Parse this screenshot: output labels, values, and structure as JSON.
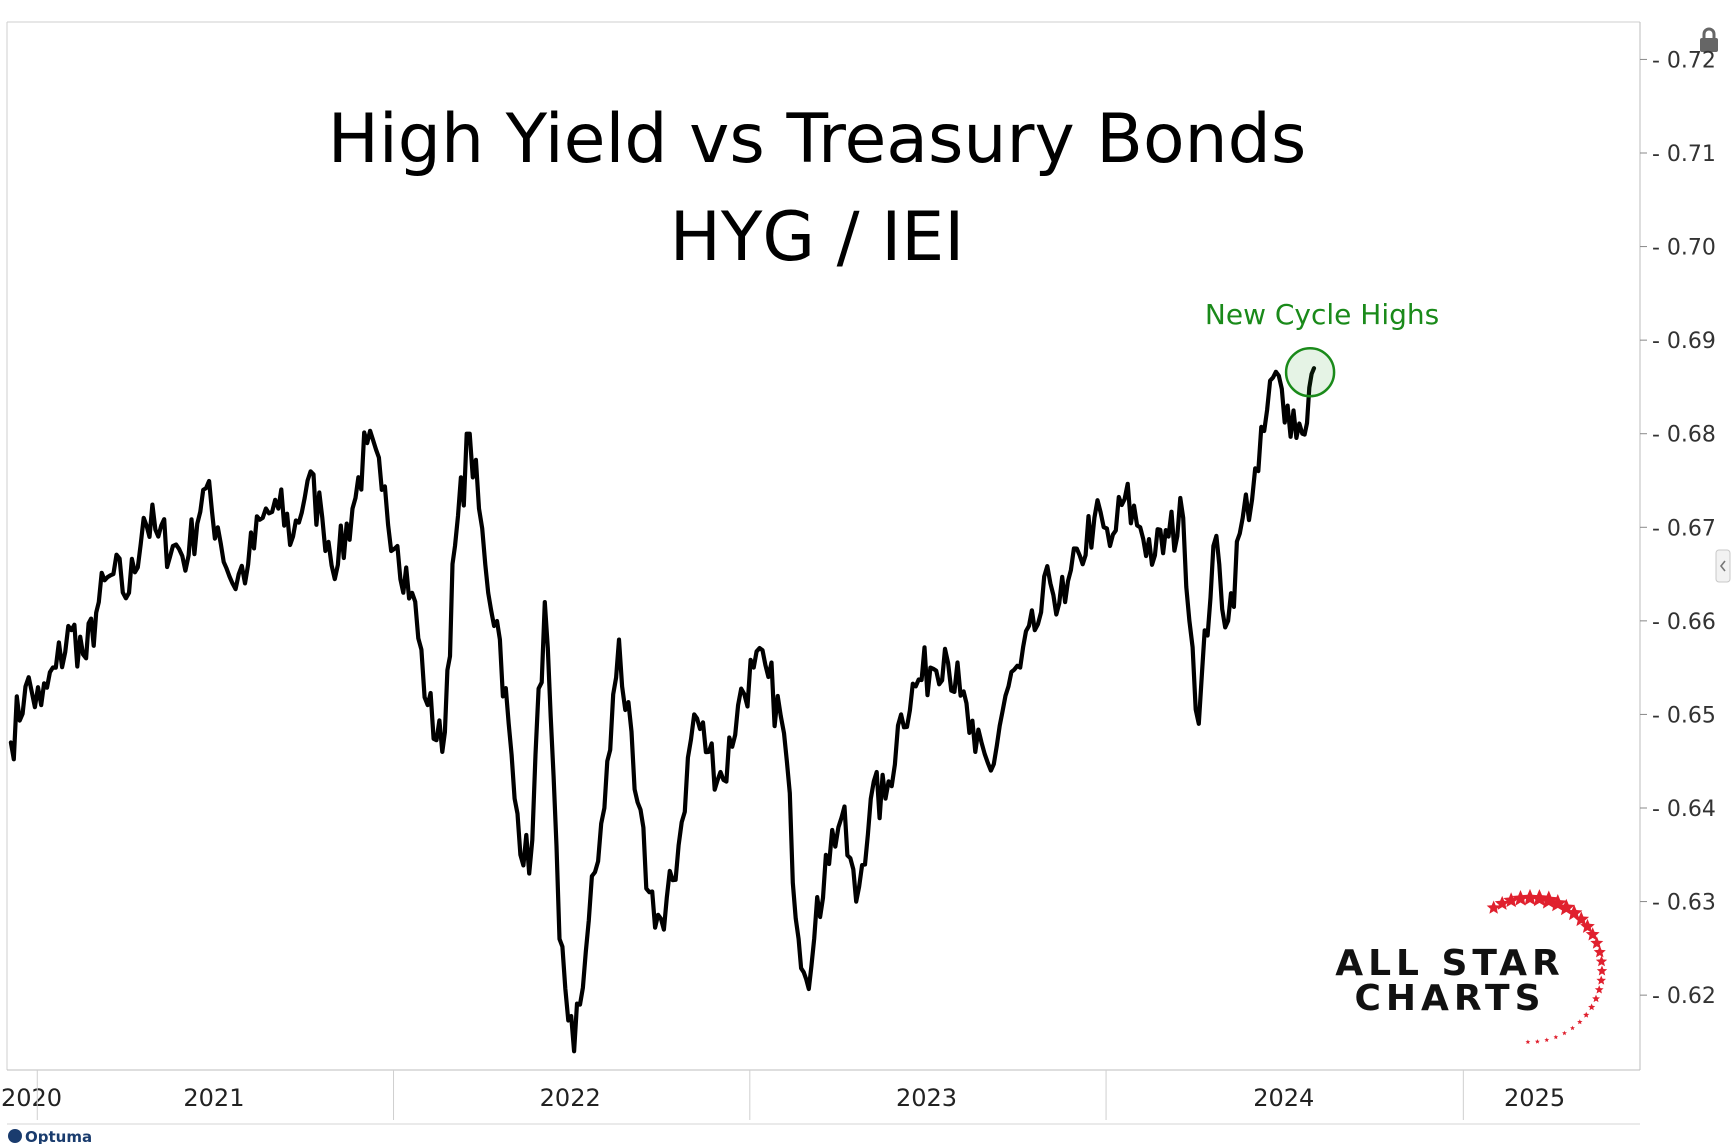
{
  "chart_data": {
    "type": "line",
    "title": "High Yield vs Treasury Bonds",
    "subtitle": "HYG / IEI",
    "xlabel": "",
    "ylabel": "",
    "x_ticks": [
      "2020",
      "2021",
      "2022",
      "2023",
      "2024",
      "2025"
    ],
    "y_ticks": [
      "0.62",
      "0.63",
      "0.64",
      "0.65",
      "0.66",
      "0.67",
      "0.68",
      "0.69",
      "0.70",
      "0.71",
      "0.72"
    ],
    "ylim": [
      0.612,
      0.724
    ],
    "xlim": [
      "2020-12",
      "2025-07"
    ],
    "grid": false,
    "annotation": {
      "text": "New Cycle Highs",
      "x": "2024-07",
      "y": 0.687
    },
    "colors": {
      "line": "#000000",
      "annotation": "#1a8a1a",
      "stars": "#e0202e"
    },
    "series": [
      {
        "values": [
          [
            "2020-12-05",
            0.647
          ],
          [
            "2020-12-20",
            0.653
          ],
          [
            "2021-01-05",
            0.651
          ],
          [
            "2021-01-20",
            0.655
          ],
          [
            "2021-02-05",
            0.659
          ],
          [
            "2021-02-20",
            0.656
          ],
          [
            "2021-03-05",
            0.662
          ],
          [
            "2021-03-20",
            0.665
          ],
          [
            "2021-04-05",
            0.663
          ],
          [
            "2021-04-20",
            0.671
          ],
          [
            "2021-05-05",
            0.669
          ],
          [
            "2021-05-20",
            0.668
          ],
          [
            "2021-06-05",
            0.667
          ],
          [
            "2021-06-20",
            0.674
          ],
          [
            "2021-07-05",
            0.67
          ],
          [
            "2021-07-20",
            0.664
          ],
          [
            "2021-08-05",
            0.666
          ],
          [
            "2021-08-20",
            0.671
          ],
          [
            "2021-09-05",
            0.672
          ],
          [
            "2021-09-20",
            0.669
          ],
          [
            "2021-10-05",
            0.675
          ],
          [
            "2021-10-20",
            0.671
          ],
          [
            "2021-11-05",
            0.666
          ],
          [
            "2021-11-20",
            0.672
          ],
          [
            "2021-12-05",
            0.679
          ],
          [
            "2021-12-20",
            0.674
          ],
          [
            "2022-01-05",
            0.668
          ],
          [
            "2022-01-20",
            0.663
          ],
          [
            "2022-02-05",
            0.651
          ],
          [
            "2022-02-20",
            0.646
          ],
          [
            "2022-03-05",
            0.668
          ],
          [
            "2022-03-20",
            0.68
          ],
          [
            "2022-04-05",
            0.666
          ],
          [
            "2022-04-20",
            0.658
          ],
          [
            "2022-05-05",
            0.641
          ],
          [
            "2022-05-20",
            0.633
          ],
          [
            "2022-06-05",
            0.662
          ],
          [
            "2022-06-20",
            0.626
          ],
          [
            "2022-07-05",
            0.614
          ],
          [
            "2022-07-20",
            0.628
          ],
          [
            "2022-08-05",
            0.64
          ],
          [
            "2022-08-20",
            0.658
          ],
          [
            "2022-09-05",
            0.642
          ],
          [
            "2022-09-20",
            0.631
          ],
          [
            "2022-10-05",
            0.627
          ],
          [
            "2022-10-20",
            0.636
          ],
          [
            "2022-11-05",
            0.65
          ],
          [
            "2022-11-20",
            0.646
          ],
          [
            "2022-12-05",
            0.643
          ],
          [
            "2022-12-20",
            0.651
          ],
          [
            "2023-01-05",
            0.655
          ],
          [
            "2023-01-20",
            0.654
          ],
          [
            "2023-02-05",
            0.648
          ],
          [
            "2023-02-20",
            0.626
          ],
          [
            "2023-03-05",
            0.623
          ],
          [
            "2023-03-20",
            0.635
          ],
          [
            "2023-04-05",
            0.639
          ],
          [
            "2023-04-20",
            0.63
          ],
          [
            "2023-05-05",
            0.641
          ],
          [
            "2023-05-20",
            0.641
          ],
          [
            "2023-06-05",
            0.65
          ],
          [
            "2023-06-20",
            0.653
          ],
          [
            "2023-07-05",
            0.655
          ],
          [
            "2023-07-20",
            0.657
          ],
          [
            "2023-08-05",
            0.652
          ],
          [
            "2023-08-20",
            0.646
          ],
          [
            "2023-09-05",
            0.644
          ],
          [
            "2023-09-20",
            0.652
          ],
          [
            "2023-10-05",
            0.655
          ],
          [
            "2023-10-20",
            0.659
          ],
          [
            "2023-11-05",
            0.664
          ],
          [
            "2023-11-20",
            0.662
          ],
          [
            "2023-12-05",
            0.667
          ],
          [
            "2023-12-20",
            0.671
          ],
          [
            "2024-01-05",
            0.668
          ],
          [
            "2024-01-20",
            0.673
          ],
          [
            "2024-02-05",
            0.67
          ],
          [
            "2024-02-20",
            0.667
          ],
          [
            "2024-03-05",
            0.669
          ],
          [
            "2024-03-20",
            0.671
          ],
          [
            "2024-04-05",
            0.649
          ],
          [
            "2024-04-20",
            0.668
          ],
          [
            "2024-05-05",
            0.66
          ],
          [
            "2024-05-20",
            0.671
          ],
          [
            "2024-06-05",
            0.676
          ],
          [
            "2024-06-20",
            0.686
          ],
          [
            "2024-07-05",
            0.683
          ],
          [
            "2024-07-20",
            0.68
          ],
          [
            "2024-08-01",
            0.687
          ]
        ]
      }
    ]
  },
  "brand": {
    "logo_line1": "ALL STAR",
    "logo_line2": "CHARTS",
    "vendor": "Optuma"
  }
}
